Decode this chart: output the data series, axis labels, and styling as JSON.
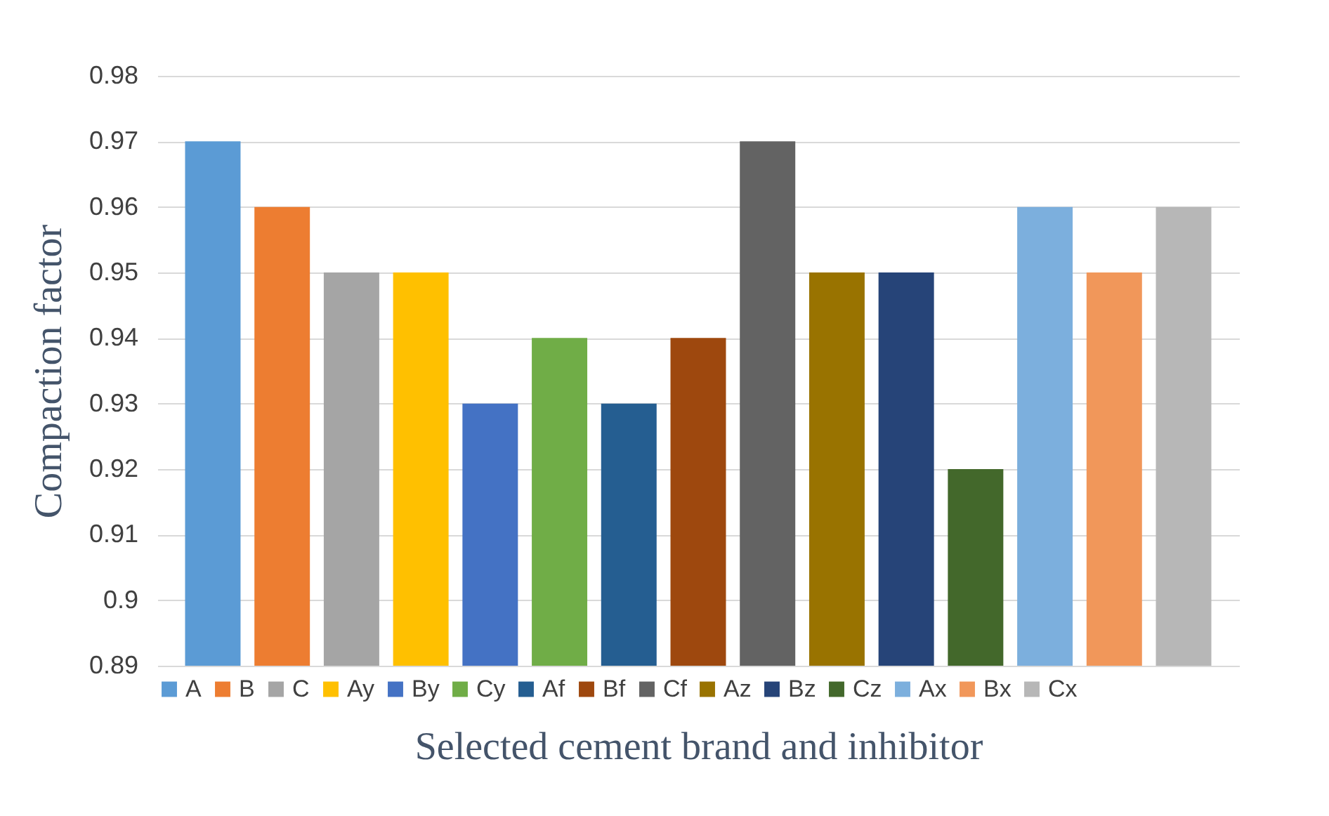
{
  "chart_data": {
    "type": "bar",
    "xlabel": "Selected cement brand and inhibitor",
    "ylabel": "Compaction factor",
    "categories": [
      null
    ],
    "series": [
      {
        "name": "A",
        "color": "#5b9bd5",
        "values": [
          0.97
        ]
      },
      {
        "name": "B",
        "color": "#ed7d31",
        "values": [
          0.96
        ]
      },
      {
        "name": "C",
        "color": "#a5a5a5",
        "values": [
          0.95
        ]
      },
      {
        "name": "Ay",
        "color": "#ffc000",
        "values": [
          0.95
        ]
      },
      {
        "name": "By",
        "color": "#4472c4",
        "values": [
          0.93
        ]
      },
      {
        "name": "Cy",
        "color": "#70ad47",
        "values": [
          0.94
        ]
      },
      {
        "name": "Af",
        "color": "#255e91",
        "values": [
          0.93
        ]
      },
      {
        "name": "Bf",
        "color": "#9e480e",
        "values": [
          0.94
        ]
      },
      {
        "name": "Cf",
        "color": "#636363",
        "values": [
          0.97
        ]
      },
      {
        "name": "Az",
        "color": "#997300",
        "values": [
          0.95
        ]
      },
      {
        "name": "Bz",
        "color": "#264478",
        "values": [
          0.95
        ]
      },
      {
        "name": "Cz",
        "color": "#43682b",
        "values": [
          0.92
        ]
      },
      {
        "name": "Ax",
        "color": "#7cafdd",
        "values": [
          0.96
        ]
      },
      {
        "name": "Bx",
        "color": "#f1975a",
        "values": [
          0.95
        ]
      },
      {
        "name": "Cx",
        "color": "#b7b7b7",
        "values": [
          0.96
        ]
      }
    ],
    "ylim": [
      0.89,
      0.98
    ],
    "yticks": [
      0.89,
      0.9,
      0.91,
      0.92,
      0.93,
      0.94,
      0.95,
      0.96,
      0.97,
      0.98
    ],
    "grid": "y",
    "legend": "bottom"
  }
}
